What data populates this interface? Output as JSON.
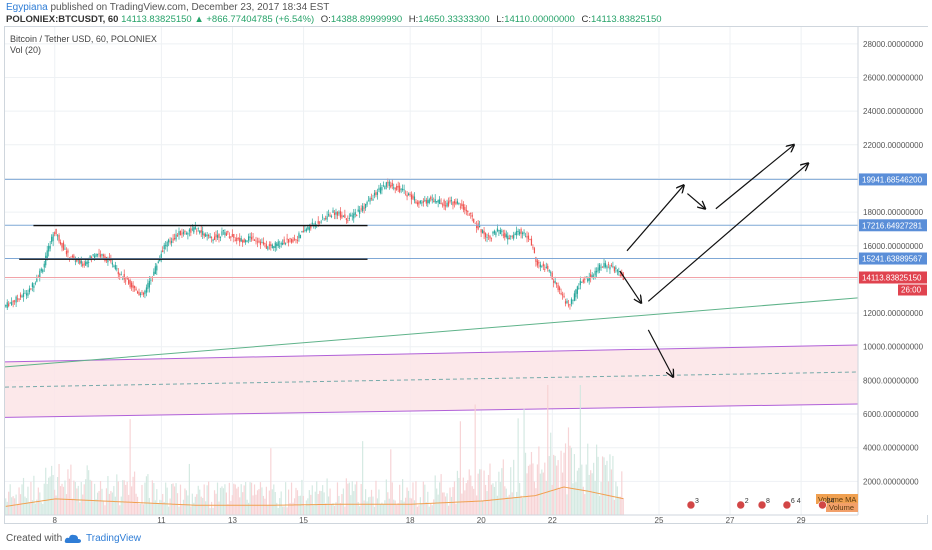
{
  "header": {
    "author": "Egypiana",
    "published": " published on TradingView.com, December 23, 2017 18:34 EST",
    "symbol": "POLONIEX:BTCUSDT, 60",
    "last": "14113.83825150",
    "change": "▲ +866.77404785 (+6.54%)",
    "o_label": "O:",
    "o": "14388.89999990",
    "h_label": "H:",
    "h": "14650.33333300",
    "l_label": "L:",
    "l": "14110.00000000",
    "c_label": "C:",
    "c": "14113.83825150"
  },
  "legend": {
    "title": "Bitcoin / Tether USD, 60, POLONIEX",
    "vol": "Vol (20)"
  },
  "footer": {
    "made": "Created with",
    "brand": "TradingView"
  },
  "colors": {
    "up": "#26a69a",
    "down": "#ef5350",
    "grid": "#eef1f4",
    "hline": "#7fa8d6",
    "trend": "#5fb38a",
    "channel": "#b060d8",
    "zone": "#fbe4e6"
  },
  "chart_data": {
    "type": "candlestick",
    "ylim": [
      0,
      29000
    ],
    "y_ticks": [
      "28000.00000000",
      "26000.00000000",
      "24000.00000000",
      "22000.00000000",
      "20000.00000000",
      "18000.00000000",
      "16000.00000000",
      "14000.00000000",
      "12000.00000000",
      "10000.00000000",
      "8000.00000000",
      "6000.00000000",
      "4000.00000000",
      "2000.00000000"
    ],
    "y_tick_values": [
      28000,
      26000,
      24000,
      22000,
      20000,
      18000,
      16000,
      14000,
      12000,
      10000,
      8000,
      6000,
      4000,
      2000
    ],
    "x_ticks": [
      "8",
      "11",
      "13",
      "15",
      "18",
      "20",
      "22",
      "25",
      "27",
      "29"
    ],
    "x_tick_days": [
      8,
      11,
      13,
      15,
      18,
      20,
      22,
      25,
      27,
      29
    ],
    "x_range_days": [
      6.6,
      30.6
    ],
    "price_path": [
      [
        6.6,
        12400
      ],
      [
        7.3,
        13300
      ],
      [
        7.7,
        14800
      ],
      [
        8.0,
        16900
      ],
      [
        8.4,
        15400
      ],
      [
        8.8,
        14900
      ],
      [
        9.2,
        15600
      ],
      [
        9.6,
        15000
      ],
      [
        10.0,
        14000
      ],
      [
        10.5,
        13000
      ],
      [
        10.8,
        14400
      ],
      [
        11.1,
        16000
      ],
      [
        11.5,
        16700
      ],
      [
        12.0,
        17000
      ],
      [
        12.4,
        16400
      ],
      [
        12.8,
        16800
      ],
      [
        13.2,
        16300
      ],
      [
        13.6,
        16500
      ],
      [
        14.0,
        15900
      ],
      [
        14.4,
        16200
      ],
      [
        14.8,
        16400
      ],
      [
        15.1,
        17000
      ],
      [
        15.5,
        17500
      ],
      [
        15.9,
        18000
      ],
      [
        16.3,
        17600
      ],
      [
        16.7,
        18300
      ],
      [
        17.1,
        19200
      ],
      [
        17.4,
        19700
      ],
      [
        17.7,
        19400
      ],
      [
        18.0,
        19000
      ],
      [
        18.3,
        18500
      ],
      [
        18.6,
        18800
      ],
      [
        19.0,
        18500
      ],
      [
        19.3,
        18600
      ],
      [
        19.6,
        18100
      ],
      [
        19.9,
        17200
      ],
      [
        20.2,
        16500
      ],
      [
        20.5,
        16900
      ],
      [
        20.8,
        16400
      ],
      [
        21.1,
        16900
      ],
      [
        21.4,
        16300
      ],
      [
        21.6,
        14900
      ],
      [
        21.9,
        14600
      ],
      [
        22.2,
        13300
      ],
      [
        22.5,
        12400
      ],
      [
        22.8,
        13800
      ],
      [
        23.1,
        14200
      ],
      [
        23.4,
        14900
      ],
      [
        23.7,
        14700
      ],
      [
        23.9,
        14400
      ],
      [
        24.0,
        14113.8
      ]
    ],
    "volume_profile": [
      [
        6.6,
        800
      ],
      [
        8.0,
        1500
      ],
      [
        10.0,
        1200
      ],
      [
        12.0,
        900
      ],
      [
        14.0,
        900
      ],
      [
        16.0,
        1000
      ],
      [
        18.0,
        1000
      ],
      [
        20.0,
        1300
      ],
      [
        21.5,
        1800
      ],
      [
        22.3,
        2600
      ],
      [
        23.0,
        2200
      ],
      [
        24.0,
        1500
      ]
    ],
    "volume_ma_label": "Volume MA",
    "volume_label": "Volume",
    "horizontal_levels": [
      {
        "value": 19941.685462,
        "label": "19941.68546200"
      },
      {
        "value": 17216.64927281,
        "label": "17216.64927281"
      },
      {
        "value": 15241.63889567,
        "label": "15241.63889567"
      }
    ],
    "last_price": {
      "value": 14113.8382515,
      "label": "14113.83825150"
    },
    "countdown": "26:00",
    "range_lines": [
      {
        "from_day": 7.4,
        "to_day": 16.8,
        "value": 17200
      },
      {
        "from_day": 7.0,
        "to_day": 16.8,
        "value": 15200
      }
    ],
    "trendline": {
      "from": [
        6.6,
        8800
      ],
      "to": [
        30.6,
        12900
      ]
    },
    "channel": {
      "upper": [
        [
          6.6,
          9100
        ],
        [
          30.6,
          10100
        ]
      ],
      "mid": [
        [
          6.6,
          7600
        ],
        [
          30.6,
          8500
        ]
      ],
      "lower": [
        [
          6.6,
          5800
        ],
        [
          30.6,
          6600
        ]
      ]
    },
    "arrows": [
      [
        [
          24.1,
          15700
        ],
        [
          25.7,
          19600
        ]
      ],
      [
        [
          25.8,
          19100
        ],
        [
          26.3,
          18200
        ]
      ],
      [
        [
          26.6,
          18200
        ],
        [
          28.8,
          22000
        ]
      ],
      [
        [
          23.9,
          14500
        ],
        [
          24.5,
          12600
        ]
      ],
      [
        [
          24.7,
          12700
        ],
        [
          29.2,
          20900
        ]
      ],
      [
        [
          24.7,
          11000
        ],
        [
          25.4,
          8200
        ]
      ]
    ],
    "events": [
      {
        "day": 25.9,
        "count": "3"
      },
      {
        "day": 27.3,
        "count": "2"
      },
      {
        "day": 27.9,
        "count": "8"
      },
      {
        "day": 28.6,
        "count": "6 4"
      },
      {
        "day": 29.6,
        "count": "24"
      }
    ]
  }
}
